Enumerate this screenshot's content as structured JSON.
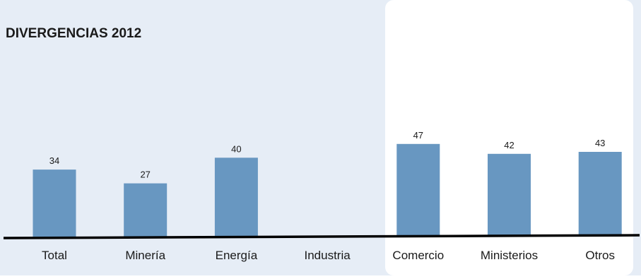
{
  "chart_data": {
    "type": "bar",
    "title": "DIVERGENCIAS 2012",
    "xlabel": "",
    "ylabel": "",
    "categories": [
      "Total",
      "Minería",
      "Energía",
      "Industria",
      "Comercio",
      "Ministerios",
      "Otros"
    ],
    "values": [
      34,
      27,
      40,
      null,
      47,
      42,
      43
    ],
    "value_labels": [
      "34",
      "27",
      "40",
      "",
      "47",
      "42",
      "43"
    ],
    "ylim": [
      0,
      120
    ],
    "grid": false,
    "legend": "none",
    "colors": {
      "bar": "#6897c1",
      "panel": "#e6edf6",
      "highlight_panel": "#ffffff",
      "axis": "#000000"
    }
  }
}
